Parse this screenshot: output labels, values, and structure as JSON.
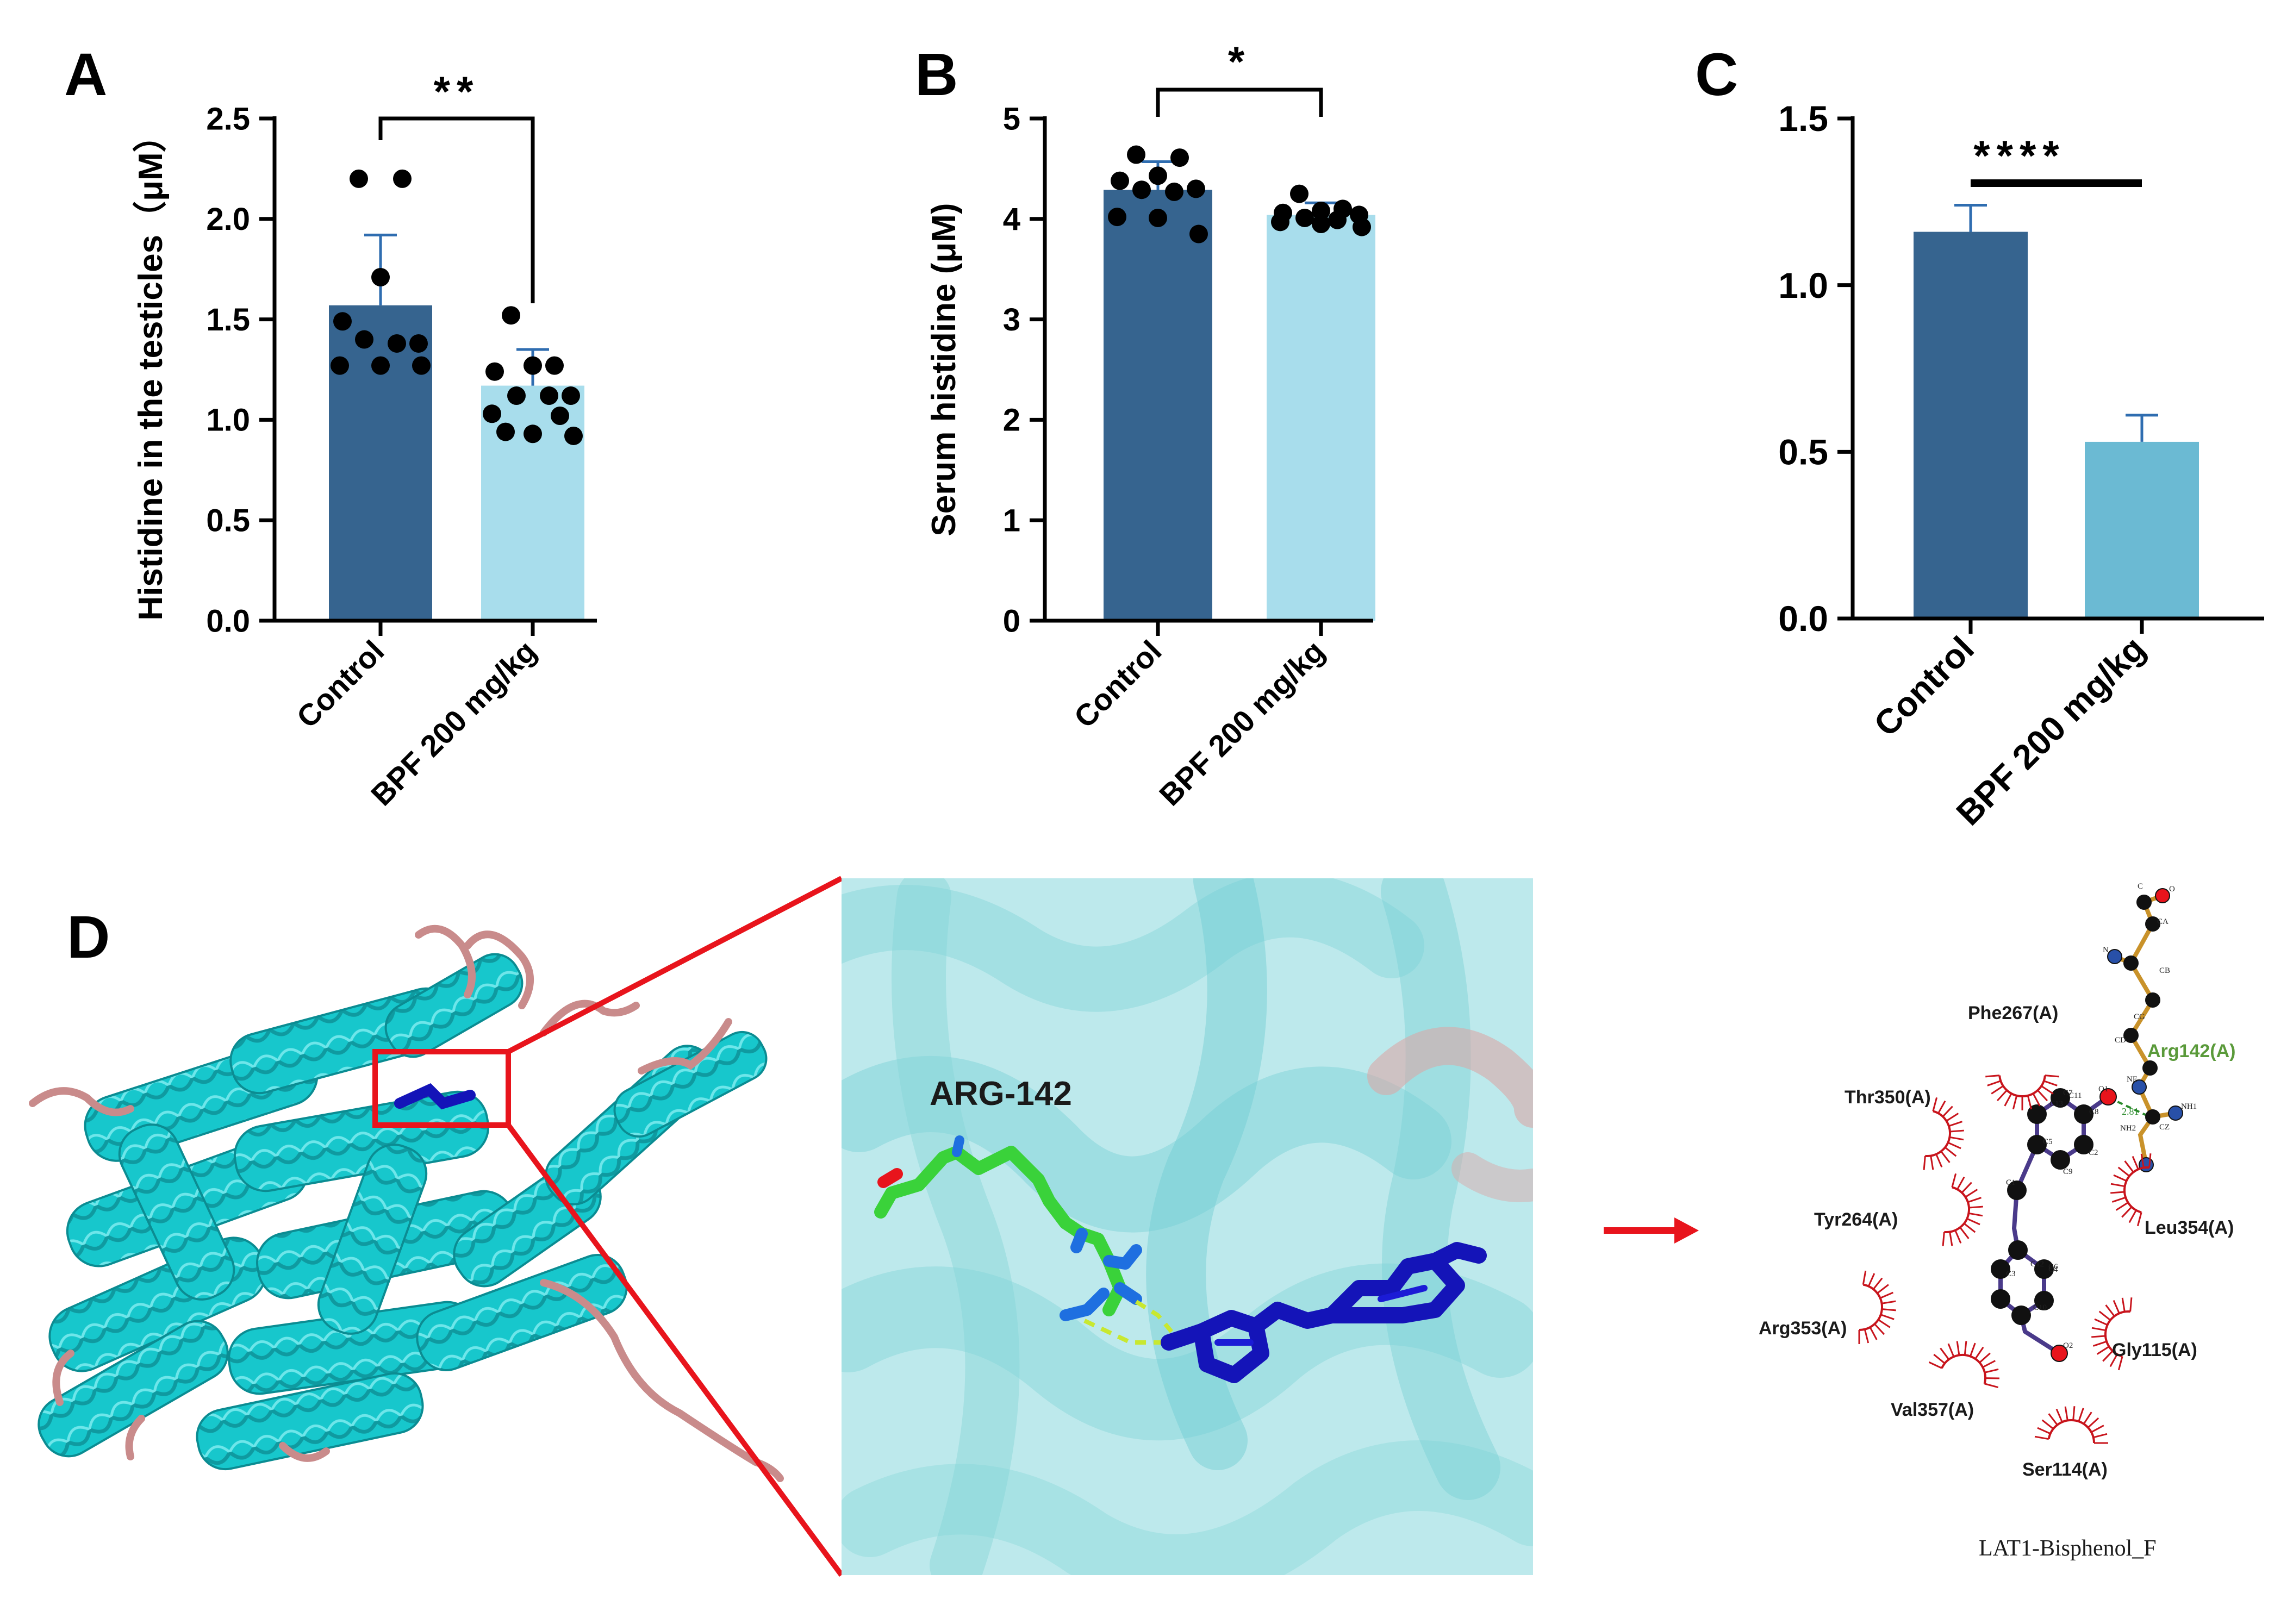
{
  "colors": {
    "control": "#36648f",
    "bpf_light": "#a8ddec",
    "bpf_c": "#6bbad3",
    "protein": "#17c7cc",
    "coil": "#c98b8b",
    "ligand": "#1414b8",
    "arg_carbon": "#3ad23a",
    "hbond": "#c8e830",
    "highlight": "#e8141c",
    "hydrophobic": "#c8141c",
    "arg_label": "#5a9a3a"
  },
  "chart_data": [
    {
      "panel": "A",
      "type": "bar",
      "categories": [
        "Control",
        "BPF 200 mg/kg"
      ],
      "values": [
        1.57,
        1.17
      ],
      "errors": [
        0.35,
        0.18
      ],
      "points": [
        [
          2.2,
          2.2,
          1.71,
          1.49,
          1.38,
          1.4,
          1.38,
          1.27,
          1.27,
          1.27
        ],
        [
          1.52,
          1.27,
          1.27,
          1.24,
          1.12,
          1.12,
          1.12,
          1.03,
          0.93,
          0.92,
          0.94,
          1.02
        ]
      ],
      "ylabel": "Histidine in the testicles（μM）",
      "ylim": [
        0,
        2.5
      ],
      "yticks": [
        "0.0",
        "0.5",
        "1.0",
        "1.5",
        "2.0",
        "2.5"
      ],
      "significance": "**"
    },
    {
      "panel": "B",
      "type": "bar",
      "categories": [
        "Control",
        "BPF 200 mg/kg"
      ],
      "values": [
        4.29,
        4.04
      ],
      "errors": [
        0.28,
        0.12
      ],
      "points": [
        [
          4.64,
          4.61,
          4.43,
          4.38,
          4.3,
          4.29,
          4.27,
          4.02,
          4.01,
          3.85
        ],
        [
          4.25,
          4.1,
          4.08,
          4.06,
          4.04,
          4.01,
          3.99,
          3.97,
          3.95,
          3.92
        ]
      ],
      "ylabel": "Serum histidine (μM)",
      "ylim": [
        0,
        5
      ],
      "yticks": [
        "0",
        "1",
        "2",
        "3",
        "4",
        "5"
      ],
      "significance": "*"
    },
    {
      "panel": "C",
      "type": "bar",
      "categories": [
        "Control",
        "BPF 200 mg/kg"
      ],
      "values": [
        1.16,
        0.53
      ],
      "errors": [
        0.08,
        0.08
      ],
      "ylim": [
        0,
        1.5
      ],
      "yticks": [
        "0.0",
        "0.5",
        "1.0",
        "1.5"
      ],
      "significance": "****"
    }
  ],
  "panels": {
    "a": "A",
    "b": "B",
    "c": "C",
    "d": "D"
  },
  "docking": {
    "residue_label": "ARG-142",
    "atoms": [
      "C",
      "O",
      "CA",
      "N",
      "CB",
      "CG",
      "CD",
      "NE",
      "CZ",
      "NH1",
      "NH2",
      "O1",
      "O2",
      "C1",
      "C2",
      "C3",
      "C4",
      "C5",
      "C6",
      "C7",
      "C8",
      "C9",
      "C10",
      "C11",
      "C12",
      "C13"
    ],
    "hbond_distance": "2.81",
    "bonded_residue": "Arg142(A)",
    "hydrophobic_residues": [
      "Phe267(A)",
      "Thr350(A)",
      "Tyr264(A)",
      "Leu354(A)",
      "Arg353(A)",
      "Gly115(A)",
      "Val357(A)",
      "Ser114(A)"
    ],
    "caption": "LAT1-Bisphenol_F"
  }
}
